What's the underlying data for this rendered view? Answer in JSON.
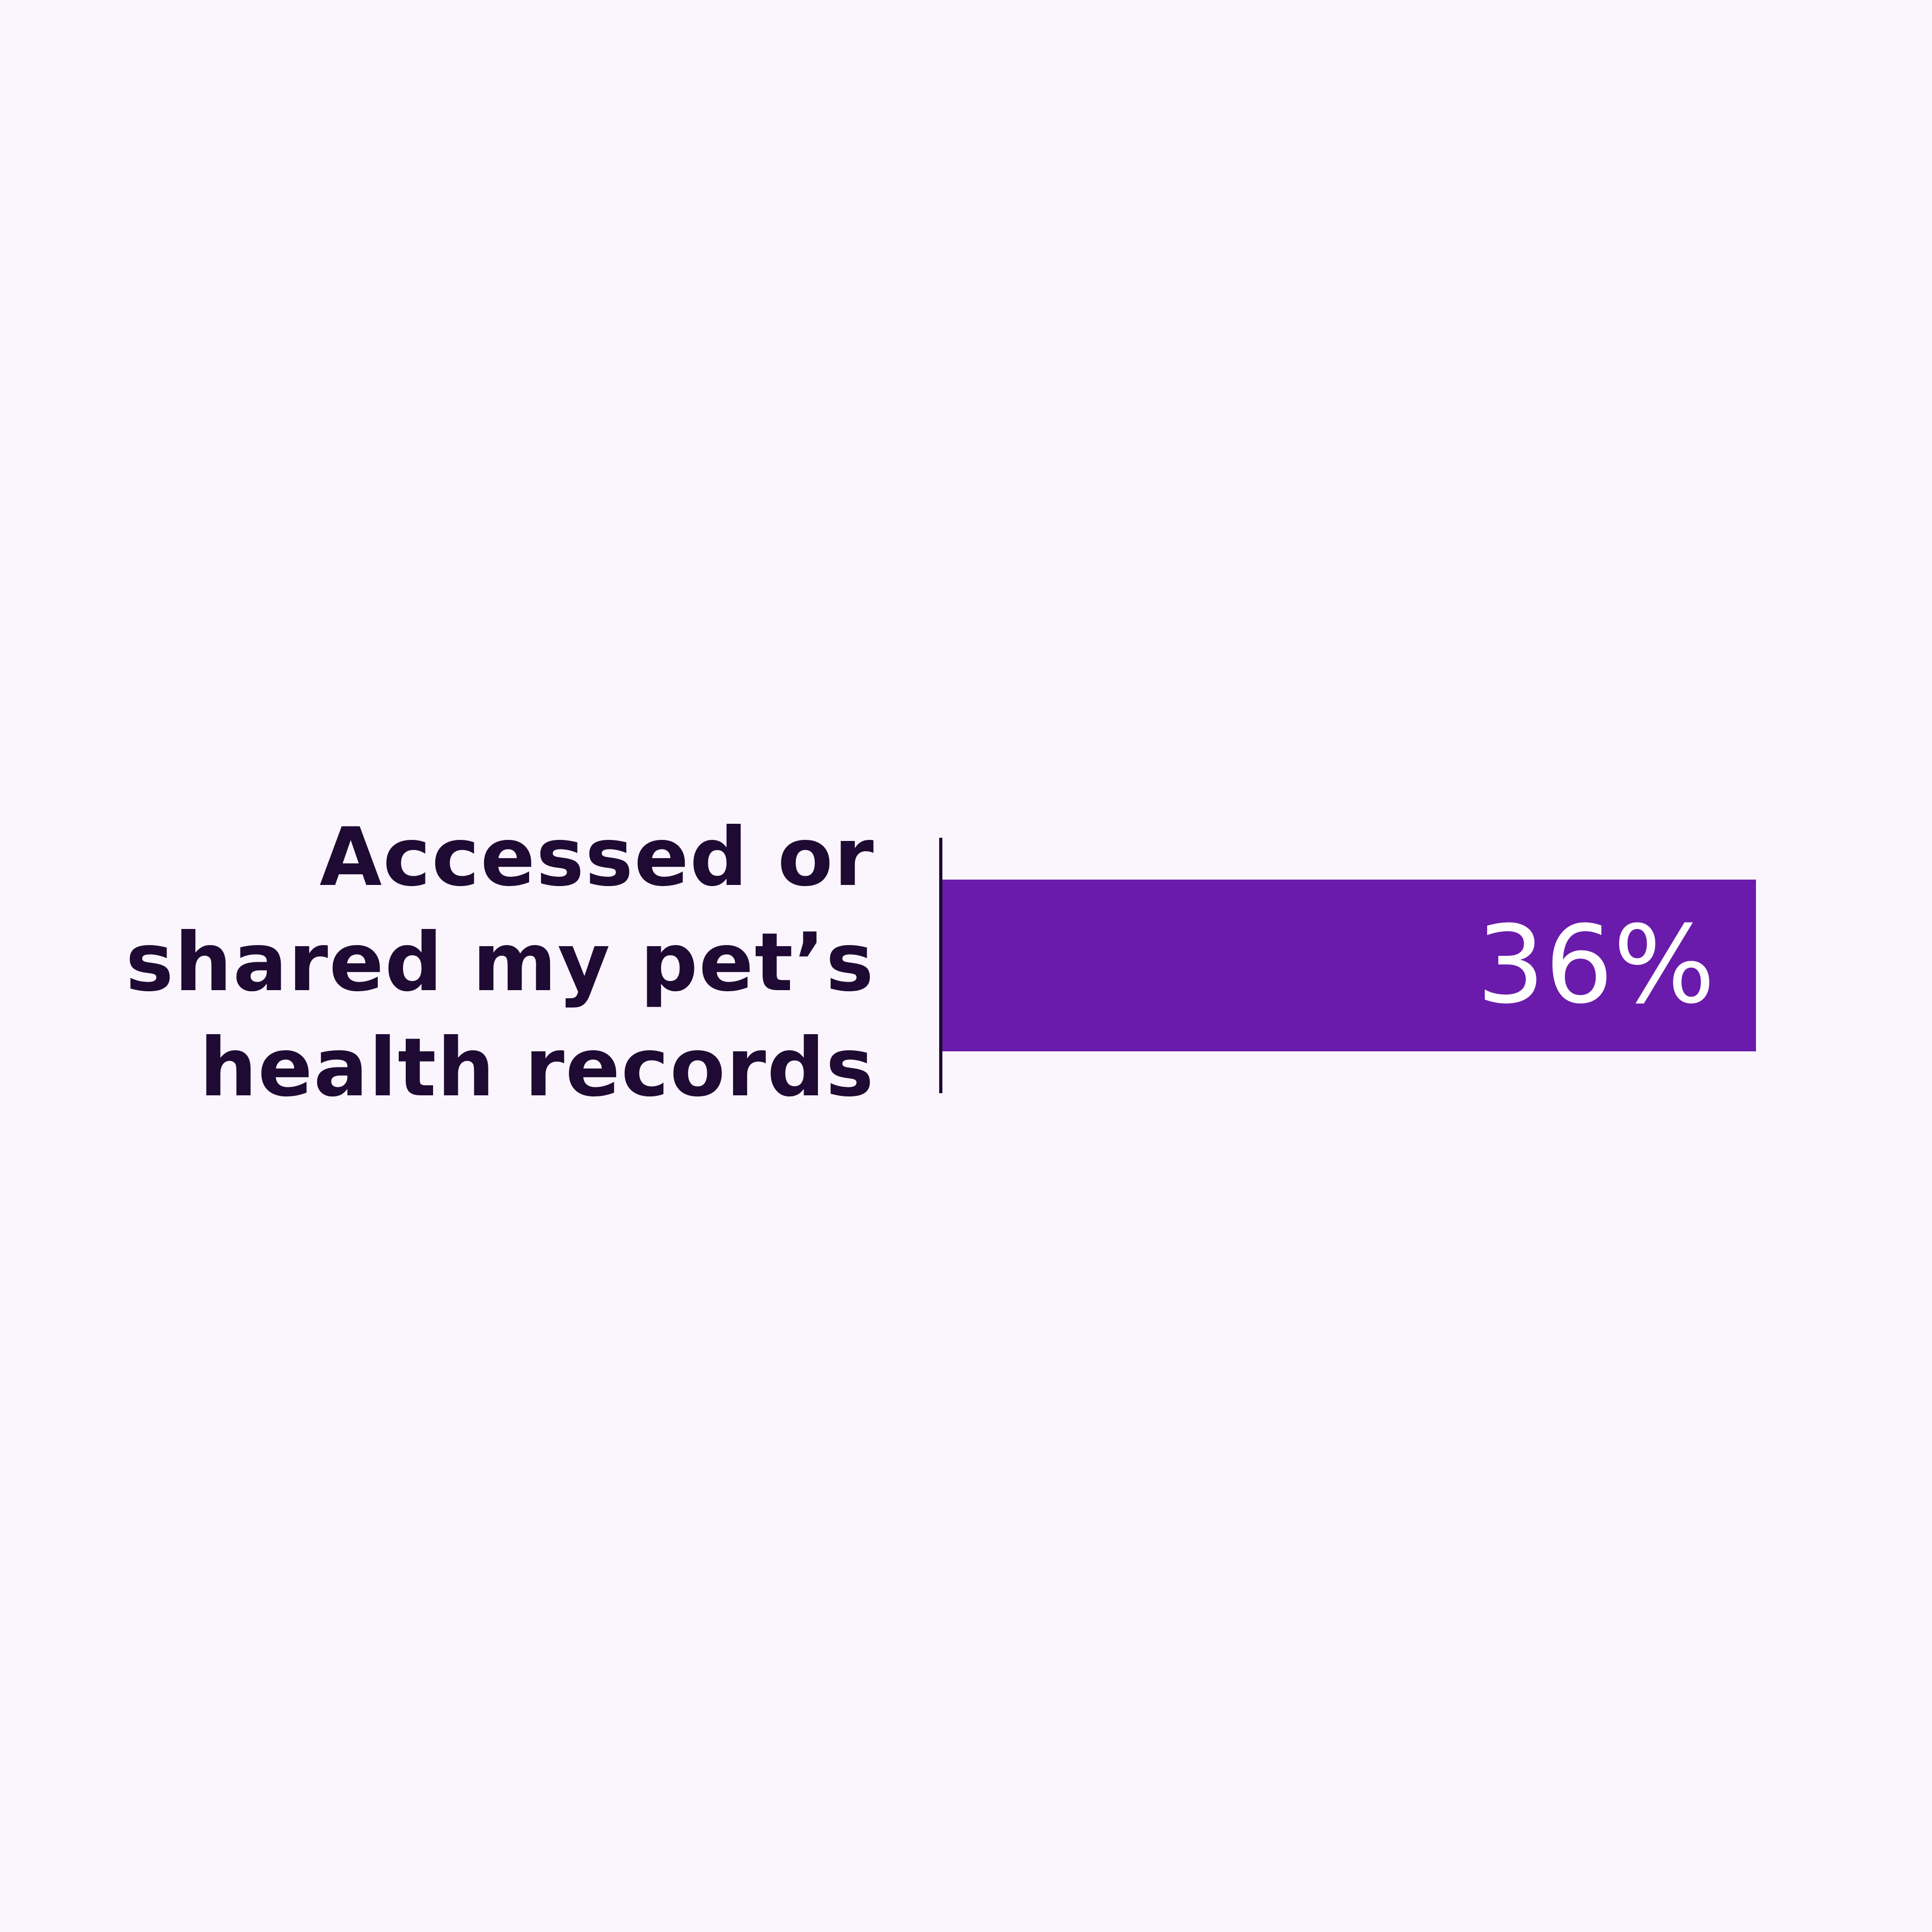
{
  "chart_data": {
    "type": "bar",
    "orientation": "horizontal",
    "categories": [
      "Accessed or shared my pet’s health records"
    ],
    "values": [
      36
    ],
    "data_labels": [
      "36%"
    ],
    "title": "",
    "xlabel": "",
    "ylabel": "",
    "grid": false,
    "colors": {
      "bar": "#6A1BAB",
      "text": "#1E0A33",
      "background": "#FBF6FE",
      "value_label": "#FFFFFF"
    }
  }
}
